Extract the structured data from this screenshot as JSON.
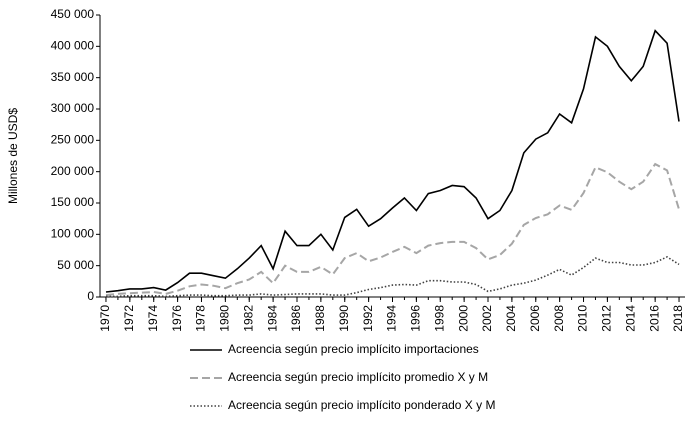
{
  "chart_data": {
    "type": "line",
    "y_label": "Millones de USD$",
    "x": [
      1970,
      1971,
      1972,
      1973,
      1974,
      1975,
      1976,
      1977,
      1978,
      1979,
      1980,
      1981,
      1982,
      1983,
      1984,
      1985,
      1986,
      1987,
      1988,
      1989,
      1990,
      1991,
      1992,
      1993,
      1994,
      1995,
      1996,
      1997,
      1998,
      1999,
      2000,
      2001,
      2002,
      2003,
      2004,
      2005,
      2006,
      2007,
      2008,
      2009,
      2010,
      2011,
      2012,
      2013,
      2014,
      2015,
      2016,
      2017,
      2018
    ],
    "series": [
      {
        "name": "Acreencia según precio implícito importaciones",
        "color": "#000000",
        "dash": "solid",
        "values": [
          8000,
          10000,
          13000,
          13000,
          15000,
          11000,
          23000,
          38000,
          38000,
          34000,
          30000,
          45000,
          62000,
          82000,
          45000,
          105000,
          82000,
          82000,
          100000,
          75000,
          127000,
          140000,
          113000,
          125000,
          142000,
          158000,
          138000,
          165000,
          170000,
          178000,
          176000,
          158000,
          125000,
          138000,
          170000,
          230000,
          252000,
          262000,
          292000,
          278000,
          332000,
          415000,
          400000,
          368000,
          345000,
          368000,
          425000,
          405000,
          280000
        ]
      },
      {
        "name": "Acreencia según precio implícito promedio X y M",
        "color": "#a6a6a6",
        "dash": "dashed",
        "values": [
          3000,
          5000,
          6000,
          7000,
          8000,
          5000,
          10000,
          17000,
          20000,
          18000,
          14000,
          22000,
          28000,
          40000,
          22000,
          50000,
          40000,
          40000,
          48000,
          36000,
          62000,
          70000,
          57000,
          63000,
          72000,
          80000,
          70000,
          82000,
          86000,
          88000,
          88000,
          78000,
          60000,
          67000,
          85000,
          115000,
          126000,
          132000,
          146000,
          139000,
          166000,
          207000,
          199000,
          184000,
          172000,
          184000,
          212000,
          202000,
          140000
        ]
      },
      {
        "name": "Acreencia según precio implícito ponderado X y M",
        "color": "#404040",
        "dash": "dotted",
        "values": [
          1000,
          1000,
          2000,
          2000,
          2000,
          1000,
          2000,
          3000,
          3000,
          2000,
          2000,
          3000,
          3000,
          5000,
          3000,
          4000,
          5000,
          5000,
          5000,
          3000,
          3000,
          7000,
          12000,
          15000,
          19000,
          20000,
          19000,
          26000,
          26000,
          24000,
          24000,
          20000,
          9000,
          13000,
          19000,
          22000,
          27000,
          35000,
          44000,
          35000,
          47000,
          62000,
          55000,
          55000,
          51000,
          51000,
          55000,
          64000,
          52000
        ]
      }
    ],
    "xlim": [
      1969.5,
      2018.5
    ],
    "xticks": [
      1970,
      1972,
      1974,
      1976,
      1978,
      1980,
      1982,
      1984,
      1986,
      1988,
      1990,
      1992,
      1994,
      1996,
      1998,
      2000,
      2002,
      2004,
      2006,
      2008,
      2010,
      2012,
      2014,
      2016,
      2018
    ],
    "ylim": [
      0,
      450000
    ],
    "yticks": [
      0,
      {
        "value": 50000,
        "label": "50 000"
      },
      {
        "value": 100000,
        "label": "100 000"
      },
      {
        "value": 150000,
        "label": "150 000"
      },
      {
        "value": 200000,
        "label": "200 000"
      },
      {
        "value": 250000,
        "label": "250 000"
      },
      {
        "value": 300000,
        "label": "300 000"
      },
      {
        "value": 350000,
        "label": "350 000"
      },
      {
        "value": 400000,
        "label": "400 000"
      },
      {
        "value": 450000,
        "label": "450 000"
      }
    ],
    "grid": false,
    "legend": "bottom"
  }
}
